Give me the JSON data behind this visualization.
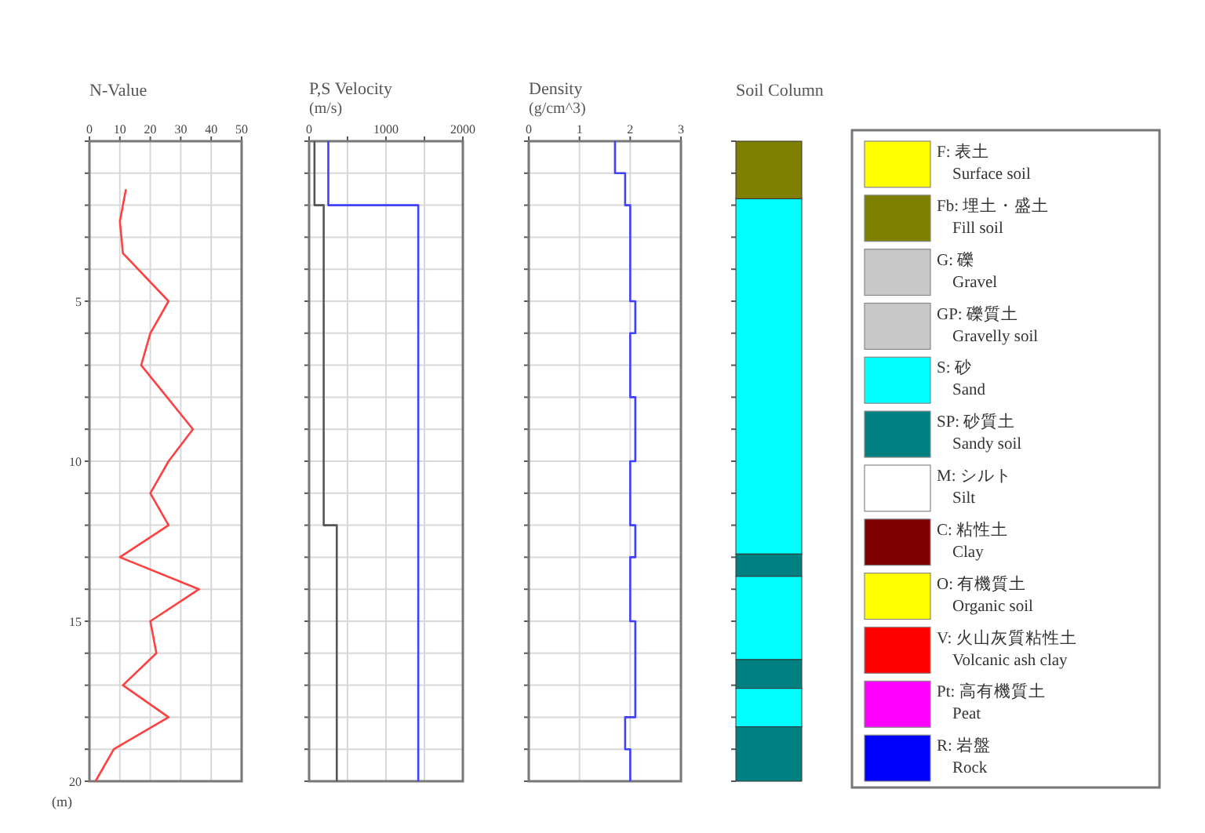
{
  "chart_data": [
    {
      "type": "line",
      "title": "N-Value",
      "xlim": [
        0,
        50
      ],
      "xticks": [
        0,
        10,
        20,
        30,
        40,
        50
      ],
      "ylim": [
        20,
        0
      ],
      "yticks": [
        {
          "value": 0,
          "label": null
        },
        {
          "value": 1,
          "label": null
        },
        {
          "value": 2,
          "label": null
        },
        {
          "value": 3,
          "label": null
        },
        {
          "value": 4,
          "label": null
        },
        5,
        {
          "value": 6,
          "label": null
        },
        {
          "value": 7,
          "label": null
        },
        {
          "value": 8,
          "label": null
        },
        {
          "value": 9,
          "label": null
        },
        10,
        {
          "value": 11,
          "label": null
        },
        {
          "value": 12,
          "label": null
        },
        {
          "value": 13,
          "label": null
        },
        {
          "value": 14,
          "label": null
        },
        15,
        {
          "value": 16,
          "label": null
        },
        {
          "value": 17,
          "label": null
        },
        {
          "value": 18,
          "label": null
        },
        {
          "value": 19,
          "label": null
        },
        20
      ],
      "grid": true,
      "annotations": [
        "(m)"
      ],
      "series": [
        {
          "color": "#ff4040",
          "x": [
            12,
            10,
            11,
            26,
            20,
            17,
            34,
            26,
            20,
            26,
            10,
            36,
            20,
            22,
            11,
            26,
            8,
            2
          ],
          "values": [
            1.5,
            2.5,
            3.5,
            5,
            6,
            7,
            9,
            10,
            11,
            12,
            13,
            14,
            15,
            16,
            17,
            18,
            19,
            20
          ]
        }
      ]
    },
    {
      "type": "line",
      "title": "P,S Velocity",
      "subtitle": "(m/s)",
      "xlim": [
        0,
        2000
      ],
      "xticks": [
        0,
        {
          "value": 500,
          "label": null
        },
        1000,
        {
          "value": 1500,
          "label": null
        },
        2000
      ],
      "ylim": [
        20,
        0
      ],
      "yticks": [
        0,
        1,
        2,
        3,
        4,
        5,
        6,
        7,
        8,
        9,
        10,
        11,
        12,
        13,
        14,
        15,
        16,
        17,
        18,
        19,
        20
      ],
      "tick_labels": "x",
      "grid": true,
      "series": [
        {
          "color": "#555555",
          "x": [
            70,
            70,
            190,
            190,
            360,
            360
          ],
          "values": [
            0,
            2,
            2,
            12,
            12,
            20
          ]
        },
        {
          "color": "#4040ff",
          "x": [
            250,
            250,
            1420,
            1420
          ],
          "values": [
            0,
            2,
            2,
            20
          ]
        }
      ]
    },
    {
      "type": "line",
      "title": "Density",
      "subtitle": "(g/cm^3)",
      "xlim": [
        0,
        3
      ],
      "xticks": [
        0,
        1,
        2,
        3
      ],
      "ylim": [
        20,
        0
      ],
      "yticks": [
        0,
        1,
        2,
        3,
        4,
        5,
        6,
        7,
        8,
        9,
        10,
        11,
        12,
        13,
        14,
        15,
        16,
        17,
        18,
        19,
        20
      ],
      "tick_labels": "x",
      "grid": true,
      "series": [
        {
          "color": "#4040ff",
          "x": [
            1.7,
            1.7,
            1.9,
            1.9,
            2.0,
            2.0,
            2.1,
            2.1,
            2.0,
            2.0,
            2.1,
            2.1,
            2.0,
            2.0,
            2.1,
            2.1,
            2.0,
            2.0,
            2.1,
            2.1,
            1.9,
            1.9,
            2.0,
            2.0
          ],
          "values": [
            0,
            1,
            1,
            2,
            2,
            5,
            5,
            6,
            6,
            8,
            8,
            10,
            10,
            12,
            12,
            13,
            13,
            15,
            15,
            18,
            18,
            19,
            19,
            20
          ]
        }
      ]
    },
    {
      "type": "bar",
      "title": "Soil Column",
      "stacked": true,
      "categories": [
        null
      ],
      "ylim": [
        20,
        0
      ],
      "yticks": [
        0,
        1,
        2,
        3,
        4,
        5,
        6,
        7,
        8,
        9,
        10,
        11,
        12,
        13,
        14,
        15,
        16,
        17,
        18,
        19,
        20
      ],
      "tick_labels": false,
      "series": [
        {
          "color": "#808000",
          "values": [
            1.8
          ]
        },
        {
          "color": "#00ffff",
          "values": [
            11.1
          ]
        },
        {
          "color": "#008080",
          "values": [
            0.7
          ]
        },
        {
          "color": "#00ffff",
          "values": [
            2.6
          ]
        },
        {
          "color": "#008080",
          "values": [
            0.9
          ]
        },
        {
          "color": "#00ffff",
          "values": [
            1.2
          ]
        },
        {
          "color": "#008080",
          "values": [
            1.7
          ]
        }
      ]
    },
    {
      "type": "other",
      "categories": [
        "F: 表土\nSurface soil",
        "Fb: 埋土・盛土\nFill soil",
        "G: 礫\nGravel",
        "GP: 礫質土\nGravelly soil",
        "S: 砂\nSand",
        "SP: 砂質土\nSandy soil",
        "M: シルト\nSilt",
        "C: 粘性土\nClay",
        "O: 有機質土\nOrganic soil",
        "V: 火山灰質粘性土\nVolcanic ash clay",
        "Pt: 高有機質土\nPeat",
        "R: 岩盤\nRock"
      ]
    }
  ]
}
